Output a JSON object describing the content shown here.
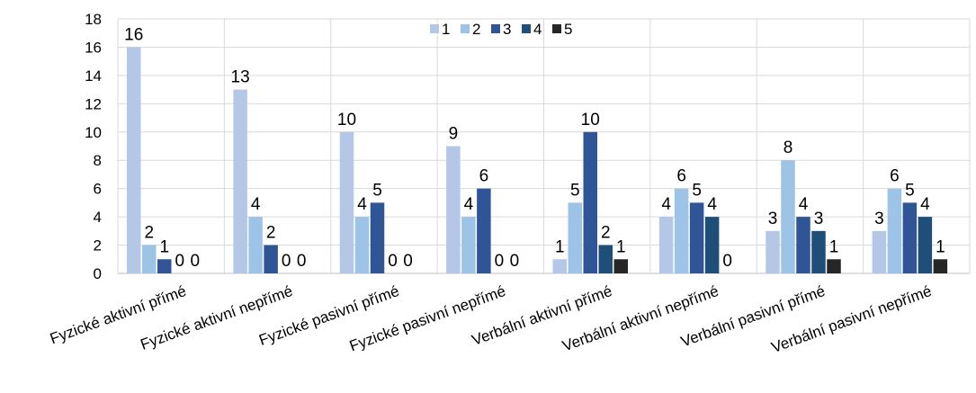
{
  "chart_data": {
    "type": "bar",
    "categories": [
      "Fyzické aktivní přímé",
      "Fyzické aktivní nepřímé",
      "Fyzické pasivní přímé",
      "Fyzické pasivní nepřímé",
      "Verbální aktivní přímé",
      "Verbální aktivní nepřímé",
      "Verbální pasivní přímé",
      "Verbální pasivní nepřímé"
    ],
    "series": [
      {
        "name": "1",
        "color": "#b4c7e7",
        "values": [
          16,
          13,
          10,
          9,
          1,
          4,
          3,
          3
        ]
      },
      {
        "name": "2",
        "color": "#9dc3e6",
        "values": [
          2,
          4,
          4,
          4,
          5,
          6,
          8,
          6
        ]
      },
      {
        "name": "3",
        "color": "#2f5597",
        "values": [
          1,
          2,
          5,
          6,
          10,
          5,
          4,
          5
        ]
      },
      {
        "name": "4",
        "color": "#1f4e79",
        "values": [
          0,
          0,
          0,
          0,
          2,
          4,
          3,
          4
        ]
      },
      {
        "name": "5",
        "color": "#262626",
        "values": [
          0,
          0,
          0,
          0,
          1,
          0,
          1,
          1
        ]
      }
    ],
    "yticks": [
      "0",
      "2",
      "4",
      "6",
      "8",
      "10",
      "12",
      "14",
      "16",
      "18"
    ],
    "ylim": [
      0,
      18
    ],
    "grid": true,
    "legend": "top-center",
    "title": "",
    "xlabel": "",
    "ylabel": ""
  }
}
